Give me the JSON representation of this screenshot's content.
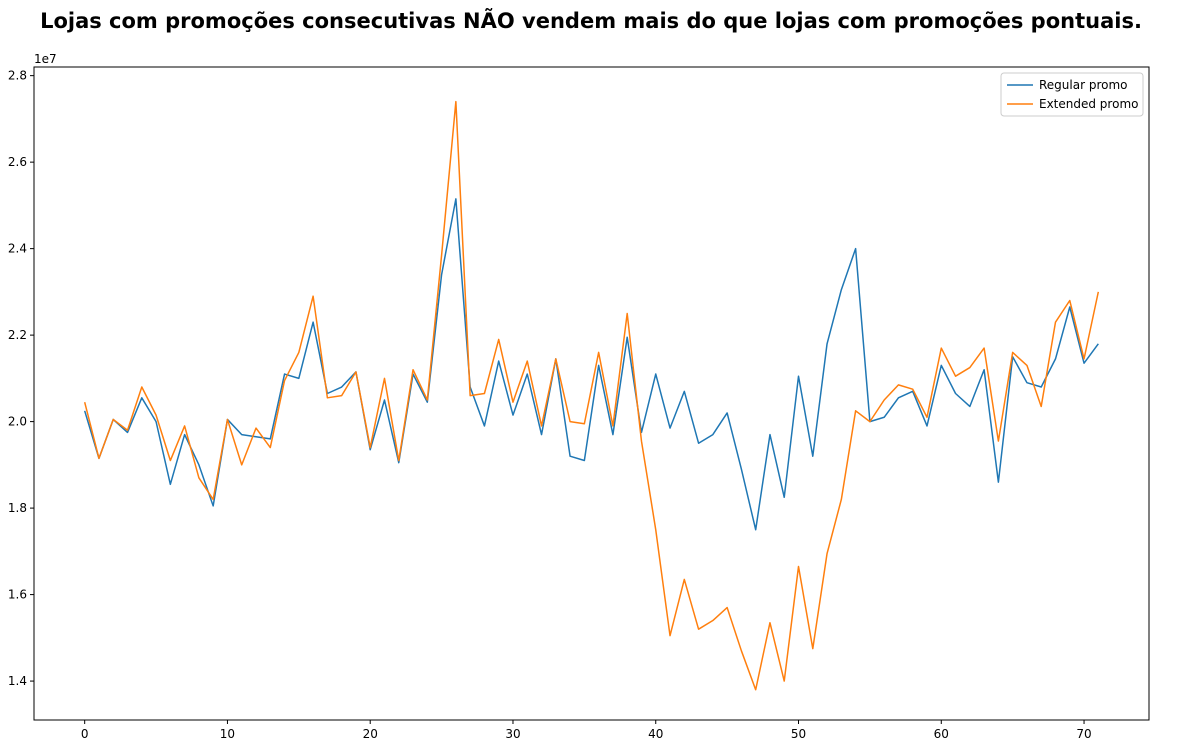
{
  "chart_data": {
    "type": "line",
    "title": "Lojas com promoções consecutivas NÃO vendem mais do que lojas com promoções pontuais.",
    "xlabel": "",
    "ylabel": "",
    "y_offset_label": "1e7",
    "xlim": [
      -3.55,
      74.55
    ],
    "ylim": [
      13100000,
      28200000
    ],
    "xticks": [
      0,
      10,
      20,
      30,
      40,
      50,
      60,
      70
    ],
    "xtick_labels": [
      "0",
      "10",
      "20",
      "30",
      "40",
      "50",
      "60",
      "70"
    ],
    "yticks": [
      14000000,
      16000000,
      18000000,
      20000000,
      22000000,
      24000000,
      26000000,
      28000000
    ],
    "ytick_labels": [
      "1.4",
      "1.6",
      "1.8",
      "2.0",
      "2.2",
      "2.4",
      "2.6",
      "2.8"
    ],
    "grid": false,
    "legend_position": "top-right",
    "x": [
      0,
      1,
      2,
      3,
      4,
      5,
      6,
      7,
      8,
      9,
      10,
      11,
      12,
      13,
      14,
      15,
      16,
      17,
      18,
      19,
      20,
      21,
      22,
      23,
      24,
      25,
      26,
      27,
      28,
      29,
      30,
      31,
      32,
      33,
      34,
      35,
      36,
      37,
      38,
      39,
      40,
      41,
      42,
      43,
      44,
      45,
      46,
      47,
      48,
      49,
      50,
      51,
      52,
      53,
      54,
      55,
      56,
      57,
      58,
      59,
      60,
      61,
      62,
      63,
      64,
      65,
      66,
      67,
      68,
      69,
      70,
      71
    ],
    "series": [
      {
        "name": "Regular promo",
        "color": "#1f77b4",
        "values": [
          20250000,
          19150000,
          20050000,
          19750000,
          20550000,
          20000000,
          18550000,
          19700000,
          19000000,
          18050000,
          20050000,
          19700000,
          19650000,
          19600000,
          21100000,
          21000000,
          22300000,
          20650000,
          20800000,
          21150000,
          19350000,
          20500000,
          19050000,
          21100000,
          20450000,
          23400000,
          25150000,
          20800000,
          19900000,
          21400000,
          20150000,
          21100000,
          19700000,
          21450000,
          19200000,
          19100000,
          21300000,
          19700000,
          21950000,
          19750000,
          21100000,
          19850000,
          20700000,
          19500000,
          19700000,
          20200000,
          18900000,
          17500000,
          19700000,
          18250000,
          21050000,
          19200000,
          21800000,
          23050000,
          24000000,
          20000000,
          20100000,
          20550000,
          20700000,
          19900000,
          21300000,
          20650000,
          20350000,
          21200000,
          18600000,
          21500000,
          20900000,
          20800000,
          21450000,
          22650000,
          21350000,
          21800000
        ]
      },
      {
        "name": "Extended promo",
        "color": "#ff7f0e",
        "values": [
          20450000,
          19150000,
          20050000,
          19800000,
          20800000,
          20150000,
          19100000,
          19900000,
          18700000,
          18200000,
          20050000,
          19000000,
          19850000,
          19400000,
          20950000,
          21600000,
          22900000,
          20550000,
          20600000,
          21150000,
          19400000,
          21000000,
          19100000,
          21200000,
          20500000,
          23850000,
          27400000,
          20600000,
          20650000,
          21900000,
          20450000,
          21400000,
          19900000,
          21450000,
          20000000,
          19950000,
          21600000,
          19900000,
          22500000,
          19550000,
          17500000,
          15050000,
          16350000,
          15200000,
          15400000,
          15700000,
          14700000,
          13800000,
          15350000,
          14000000,
          16650000,
          14750000,
          16950000,
          18200000,
          20250000,
          20000000,
          20500000,
          20850000,
          20750000,
          20100000,
          21700000,
          21050000,
          21250000,
          21700000,
          19550000,
          21600000,
          21300000,
          20350000,
          22300000,
          22800000,
          21450000,
          23000000
        ]
      }
    ]
  }
}
